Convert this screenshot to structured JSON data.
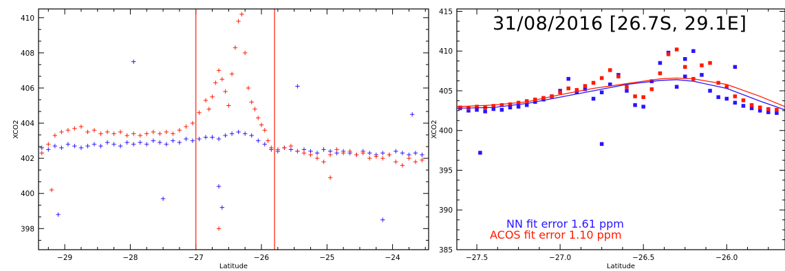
{
  "colors": {
    "nn": "#2a14ff",
    "acos": "#ff1a00",
    "axis": "#000000"
  },
  "chart_data": [
    {
      "type": "scatter",
      "title": "",
      "xlabel": "Latitude",
      "ylabel": "XCO2",
      "xlim": [
        -29.4,
        -23.45
      ],
      "ylim": [
        396.8,
        410.5
      ],
      "xticks": [
        -29,
        -28,
        -27,
        -26,
        -25,
        -24
      ],
      "yticks": [
        398,
        400,
        402,
        404,
        406,
        408,
        410
      ],
      "xtick_labels": [
        "−29",
        "−28",
        "−27",
        "−26",
        "−25",
        "−24"
      ],
      "ytick_labels": [
        "398",
        "400",
        "402",
        "404",
        "406",
        "408",
        "410"
      ],
      "marker": "plus",
      "vlines": [
        -27.0,
        -25.8
      ],
      "series": [
        {
          "color_key": "nn",
          "values_note": "",
          "x": [
            -29.35,
            -29.25,
            -29.15,
            -29.05,
            -28.95,
            -28.85,
            -28.75,
            -28.65,
            -28.55,
            -28.45,
            -28.35,
            -28.25,
            -28.15,
            -28.05,
            -27.95,
            -27.85,
            -27.75,
            -27.65,
            -27.55,
            -27.45,
            -27.35,
            -27.25,
            -27.15,
            -27.05,
            -26.95,
            -26.85,
            -26.75,
            -26.65,
            -26.55,
            -26.45,
            -26.35,
            -26.25,
            -26.15,
            -26.05,
            -25.95,
            -25.85,
            -25.75,
            -25.65,
            -25.55,
            -25.45,
            -25.35,
            -25.25,
            -25.15,
            -25.05,
            -24.95,
            -24.85,
            -24.75,
            -24.65,
            -24.55,
            -24.45,
            -24.35,
            -24.25,
            -24.15,
            -24.05,
            -23.95,
            -23.85,
            -23.75,
            -23.65,
            -23.55,
            -29.1,
            -27.95,
            -27.5,
            -26.65,
            -26.6,
            -25.45,
            -24.15,
            -23.7
          ],
          "y": [
            402.6,
            402.5,
            402.7,
            402.6,
            402.8,
            402.7,
            402.6,
            402.7,
            402.8,
            402.7,
            402.9,
            402.8,
            402.7,
            402.9,
            402.8,
            402.9,
            402.8,
            403.0,
            402.9,
            402.8,
            403.0,
            402.9,
            403.1,
            403.0,
            403.1,
            403.2,
            403.2,
            403.1,
            403.3,
            403.4,
            403.5,
            403.4,
            403.3,
            403.0,
            402.8,
            402.5,
            402.4,
            402.6,
            402.5,
            402.4,
            402.5,
            402.4,
            402.3,
            402.5,
            402.4,
            402.3,
            402.4,
            402.3,
            402.2,
            402.4,
            402.3,
            402.2,
            402.3,
            402.2,
            402.4,
            402.3,
            402.2,
            402.3,
            402.2,
            398.8,
            407.5,
            399.7,
            400.4,
            399.2,
            406.1,
            398.5,
            404.5
          ]
        },
        {
          "color_key": "acos",
          "x": [
            -29.35,
            -29.25,
            -29.15,
            -29.05,
            -28.95,
            -28.85,
            -28.75,
            -28.65,
            -28.55,
            -28.45,
            -28.35,
            -28.25,
            -28.15,
            -28.05,
            -27.95,
            -27.85,
            -27.75,
            -27.65,
            -27.55,
            -27.45,
            -27.35,
            -27.25,
            -27.15,
            -27.05,
            -26.95,
            -26.85,
            -26.8,
            -26.75,
            -26.7,
            -26.65,
            -26.6,
            -26.55,
            -26.5,
            -26.45,
            -26.4,
            -26.35,
            -26.3,
            -26.25,
            -26.2,
            -26.15,
            -26.1,
            -26.05,
            -26.0,
            -25.95,
            -25.9,
            -25.85,
            -25.75,
            -25.65,
            -25.55,
            -25.45,
            -25.35,
            -25.25,
            -25.15,
            -25.05,
            -24.95,
            -24.85,
            -24.75,
            -24.65,
            -24.55,
            -24.45,
            -24.35,
            -24.25,
            -24.15,
            -24.05,
            -23.95,
            -23.85,
            -23.75,
            -23.65,
            -23.55,
            -29.2,
            -26.65,
            -24.95
          ],
          "y": [
            402.3,
            402.8,
            403.3,
            403.5,
            403.6,
            403.7,
            403.8,
            403.5,
            403.6,
            403.4,
            403.5,
            403.4,
            403.5,
            403.3,
            403.4,
            403.3,
            403.4,
            403.5,
            403.4,
            403.5,
            403.4,
            403.6,
            403.8,
            404.0,
            404.6,
            405.3,
            404.8,
            405.5,
            406.3,
            407.0,
            406.5,
            405.8,
            405.0,
            406.8,
            408.3,
            409.8,
            410.2,
            408.0,
            406.0,
            405.2,
            404.8,
            404.3,
            403.9,
            403.6,
            403.0,
            402.6,
            402.5,
            402.6,
            402.7,
            402.4,
            402.3,
            402.2,
            402.0,
            401.8,
            402.2,
            402.5,
            402.3,
            402.4,
            402.2,
            402.3,
            402.0,
            402.1,
            402.0,
            402.2,
            401.8,
            401.6,
            402.0,
            401.8,
            401.9,
            400.2,
            398.0,
            400.9
          ]
        }
      ]
    },
    {
      "type": "scatter",
      "title": "31/08/2016  [26.7S, 29.1E]",
      "xlabel": "Latitude",
      "ylabel": "XCO2",
      "xlim": [
        -27.62,
        -25.65
      ],
      "ylim": [
        385,
        415.3
      ],
      "xticks": [
        -27.5,
        -27.0,
        -26.5,
        -26.0
      ],
      "yticks": [
        385,
        390,
        395,
        400,
        405,
        410,
        415
      ],
      "xtick_labels": [
        "−27.5",
        "−27.0",
        "−26.5",
        "−26.0"
      ],
      "ytick_labels": [
        "385",
        "390",
        "395",
        "400",
        "405",
        "410",
        "415"
      ],
      "marker": "square",
      "annotations": [
        {
          "text": "NN fit error 1.61 ppm",
          "color_key": "nn"
        },
        {
          "text": "ACOS fit error 1.10 ppm",
          "color_key": "acos"
        }
      ],
      "series": [
        {
          "color_key": "nn",
          "x": [
            -27.6,
            -27.55,
            -27.5,
            -27.45,
            -27.4,
            -27.35,
            -27.3,
            -27.25,
            -27.2,
            -27.15,
            -27.1,
            -27.05,
            -27.0,
            -26.95,
            -26.9,
            -26.85,
            -26.8,
            -26.75,
            -26.7,
            -26.65,
            -26.6,
            -26.55,
            -26.5,
            -26.45,
            -26.4,
            -26.35,
            -26.3,
            -26.25,
            -26.2,
            -26.15,
            -26.1,
            -26.05,
            -26.0,
            -25.95,
            -25.9,
            -25.85,
            -25.8,
            -25.75,
            -25.7,
            -27.48,
            -26.75,
            -26.25,
            -25.95
          ],
          "y": [
            402.8,
            402.5,
            402.6,
            402.4,
            402.7,
            402.6,
            402.9,
            403.0,
            403.2,
            403.6,
            403.9,
            404.3,
            405.0,
            406.5,
            404.8,
            405.2,
            404.0,
            404.8,
            405.8,
            407.0,
            405.0,
            403.2,
            403.0,
            406.2,
            408.5,
            409.8,
            405.5,
            409.0,
            410.0,
            407.0,
            405.0,
            404.2,
            404.0,
            403.5,
            403.1,
            402.8,
            402.5,
            402.3,
            402.2,
            397.2,
            398.3,
            406.8,
            408.0
          ]
        },
        {
          "color_key": "acos",
          "x": [
            -27.6,
            -27.55,
            -27.5,
            -27.45,
            -27.4,
            -27.35,
            -27.3,
            -27.25,
            -27.2,
            -27.15,
            -27.1,
            -27.05,
            -27.0,
            -26.95,
            -26.9,
            -26.85,
            -26.8,
            -26.75,
            -26.7,
            -26.65,
            -26.6,
            -26.55,
            -26.5,
            -26.45,
            -26.4,
            -26.35,
            -26.3,
            -26.25,
            -26.2,
            -26.15,
            -26.1,
            -26.05,
            -26.0,
            -25.95,
            -25.9,
            -25.85,
            -25.8,
            -25.75,
            -25.7
          ],
          "y": [
            402.9,
            402.8,
            403.0,
            402.9,
            403.1,
            403.2,
            403.3,
            403.5,
            403.7,
            403.9,
            404.1,
            404.3,
            404.8,
            405.3,
            405.1,
            405.6,
            406.0,
            406.6,
            407.6,
            406.8,
            405.5,
            404.3,
            404.2,
            405.2,
            407.2,
            409.6,
            410.2,
            408.0,
            406.5,
            408.2,
            408.5,
            406.0,
            405.5,
            404.3,
            403.8,
            403.2,
            402.9,
            402.7,
            402.6
          ]
        }
      ],
      "fit_lines": [
        {
          "color_key": "nn",
          "x": [
            -27.62,
            -27.4,
            -27.2,
            -27.0,
            -26.8,
            -26.6,
            -26.4,
            -26.3,
            -26.2,
            -26.0,
            -25.8,
            -25.65
          ],
          "y": [
            402.8,
            402.9,
            403.4,
            404.2,
            405.0,
            405.8,
            406.3,
            406.4,
            406.2,
            405.3,
            403.7,
            402.6
          ]
        },
        {
          "color_key": "acos",
          "x": [
            -27.62,
            -27.4,
            -27.2,
            -27.0,
            -26.8,
            -26.6,
            -26.4,
            -26.3,
            -26.2,
            -26.0,
            -25.8,
            -25.65
          ],
          "y": [
            403.0,
            403.2,
            403.6,
            404.5,
            405.3,
            405.9,
            406.5,
            406.6,
            406.5,
            405.8,
            404.3,
            403.0
          ]
        }
      ]
    }
  ]
}
